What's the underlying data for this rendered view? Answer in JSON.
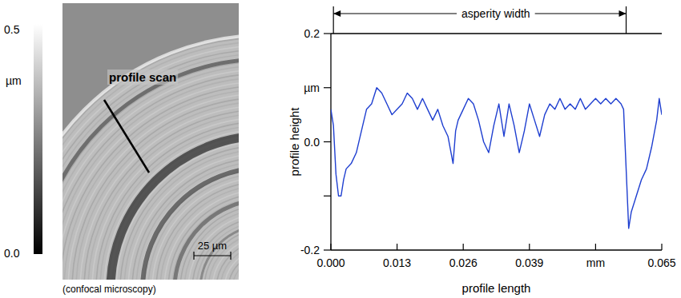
{
  "chart_data": [
    {
      "type": "image",
      "annotation": "profile scan",
      "caption": "(confocal microscopy)",
      "scale_bar_label": "25 µm",
      "colorbar_range": [
        0,
        0.5
      ],
      "colorbar_ticks": [
        {
          "value": 0.5,
          "label": "0.5"
        },
        {
          "value": 0,
          "label": "0.0"
        }
      ],
      "colorbar_label": "µm"
    },
    {
      "type": "line",
      "xlabel": "profile length",
      "ylabel": "profile height",
      "color": "#1f3fd0",
      "grid": false,
      "xlim": [
        0,
        0.065
      ],
      "ylim": [
        -0.2,
        0.2
      ],
      "xticks": [
        {
          "value": 0,
          "label": "0.000"
        },
        {
          "value": 0.013,
          "label": "0.013"
        },
        {
          "value": 0.026,
          "label": "0.026"
        },
        {
          "value": 0.039,
          "label": "0.039"
        },
        {
          "value": 0.052,
          "label": "mm"
        },
        {
          "value": 0.065,
          "label": "0.065"
        }
      ],
      "yticks": [
        -0.2,
        {
          "value": 0,
          "label": "0.0"
        },
        {
          "value": 0.1,
          "label": "µm"
        },
        {
          "value": 0.2,
          "label": "0.2"
        }
      ],
      "minor_yticks": [
        -0.1
      ],
      "asperity_width": {
        "label": "asperity width",
        "x_start": 0.0005,
        "x_end": 0.058
      },
      "x": [
        0,
        0.0005,
        0.001,
        0.0015,
        0.002,
        0.0025,
        0.003,
        0.004,
        0.005,
        0.006,
        0.007,
        0.008,
        0.009,
        0.01,
        0.011,
        0.012,
        0.013,
        0.014,
        0.015,
        0.016,
        0.017,
        0.018,
        0.019,
        0.02,
        0.021,
        0.022,
        0.023,
        0.024,
        0.0245,
        0.025,
        0.026,
        0.027,
        0.028,
        0.029,
        0.03,
        0.031,
        0.032,
        0.033,
        0.034,
        0.035,
        0.036,
        0.037,
        0.038,
        0.039,
        0.04,
        0.041,
        0.042,
        0.043,
        0.044,
        0.045,
        0.046,
        0.047,
        0.048,
        0.049,
        0.05,
        0.051,
        0.052,
        0.053,
        0.054,
        0.055,
        0.056,
        0.057,
        0.0575,
        0.058,
        0.0585,
        0.059,
        0.06,
        0.061,
        0.062,
        0.063,
        0.064,
        0.0645,
        0.065
      ],
      "values": [
        0.06,
        0.03,
        -0.06,
        -0.1,
        -0.1,
        -0.07,
        -0.05,
        -0.04,
        -0.02,
        0.02,
        0.06,
        0.07,
        0.1,
        0.09,
        0.07,
        0.05,
        0.06,
        0.07,
        0.09,
        0.08,
        0.06,
        0.08,
        0.06,
        0.04,
        0.06,
        0.03,
        0.01,
        -0.04,
        0.02,
        0.04,
        0.06,
        0.08,
        0.07,
        0.04,
        0.0,
        -0.02,
        0.03,
        0.07,
        0.01,
        0.07,
        0.03,
        -0.02,
        0.02,
        0.07,
        0.04,
        0.01,
        0.05,
        0.07,
        0.06,
        0.08,
        0.06,
        0.07,
        0.06,
        0.08,
        0.06,
        0.07,
        0.08,
        0.07,
        0.08,
        0.07,
        0.08,
        0.07,
        0.06,
        -0.05,
        -0.16,
        -0.13,
        -0.1,
        -0.07,
        -0.05,
        -0.01,
        0.04,
        0.08,
        0.05
      ]
    }
  ]
}
